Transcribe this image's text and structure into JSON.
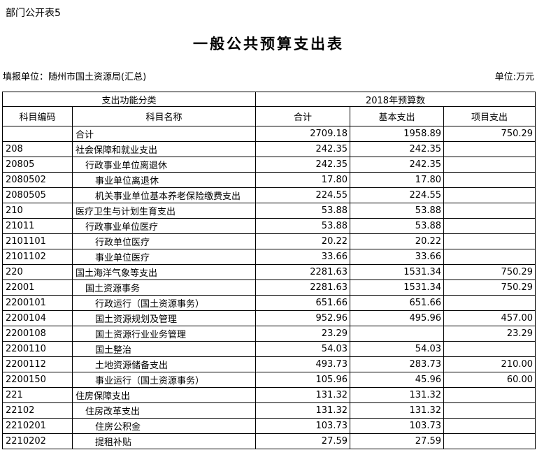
{
  "page": {
    "doc_label": "部门公开表5",
    "title": "一般公共预算支出表",
    "filler_unit": "填报单位：随州市国土资源局(汇总)",
    "unit_label": "单位:万元"
  },
  "table": {
    "header_groups": {
      "left": "支出功能分类",
      "right": "2018年预算数"
    },
    "columns": [
      "科目编码",
      "科目名称",
      "合计",
      "基本支出",
      "项目支出"
    ],
    "rows": [
      {
        "code": "",
        "name": "合计",
        "indent": 0,
        "total": "2709.18",
        "basic": "1958.89",
        "project": "750.29"
      },
      {
        "code": "208",
        "name": "社会保障和就业支出",
        "indent": 0,
        "total": "242.35",
        "basic": "242.35",
        "project": ""
      },
      {
        "code": "20805",
        "name": "行政事业单位离退休",
        "indent": 1,
        "total": "242.35",
        "basic": "242.35",
        "project": ""
      },
      {
        "code": "2080502",
        "name": "事业单位离退休",
        "indent": 2,
        "total": "17.80",
        "basic": "17.80",
        "project": ""
      },
      {
        "code": "2080505",
        "name": "机关事业单位基本养老保险缴费支出",
        "indent": 2,
        "total": "224.55",
        "basic": "224.55",
        "project": ""
      },
      {
        "code": "210",
        "name": "医疗卫生与计划生育支出",
        "indent": 0,
        "total": "53.88",
        "basic": "53.88",
        "project": ""
      },
      {
        "code": "21011",
        "name": "行政事业单位医疗",
        "indent": 1,
        "total": "53.88",
        "basic": "53.88",
        "project": ""
      },
      {
        "code": "2101101",
        "name": "行政单位医疗",
        "indent": 2,
        "total": "20.22",
        "basic": "20.22",
        "project": ""
      },
      {
        "code": "2101102",
        "name": "事业单位医疗",
        "indent": 2,
        "total": "33.66",
        "basic": "33.66",
        "project": ""
      },
      {
        "code": "220",
        "name": "国土海洋气象等支出",
        "indent": 0,
        "total": "2281.63",
        "basic": "1531.34",
        "project": "750.29"
      },
      {
        "code": "22001",
        "name": "国土资源事务",
        "indent": 1,
        "total": "2281.63",
        "basic": "1531.34",
        "project": "750.29"
      },
      {
        "code": "2200101",
        "name": "行政运行（国土资源事务）",
        "indent": 2,
        "total": "651.66",
        "basic": "651.66",
        "project": ""
      },
      {
        "code": "2200104",
        "name": "国土资源规划及管理",
        "indent": 2,
        "total": "952.96",
        "basic": "495.96",
        "project": "457.00"
      },
      {
        "code": "2200108",
        "name": "国土资源行业业务管理",
        "indent": 2,
        "total": "23.29",
        "basic": "",
        "project": "23.29"
      },
      {
        "code": "2200110",
        "name": "国土整治",
        "indent": 2,
        "total": "54.03",
        "basic": "54.03",
        "project": ""
      },
      {
        "code": "2200112",
        "name": "土地资源储备支出",
        "indent": 2,
        "total": "493.73",
        "basic": "283.73",
        "project": "210.00"
      },
      {
        "code": "2200150",
        "name": "事业运行（国土资源事务）",
        "indent": 2,
        "total": "105.96",
        "basic": "45.96",
        "project": "60.00"
      },
      {
        "code": "221",
        "name": "住房保障支出",
        "indent": 0,
        "total": "131.32",
        "basic": "131.32",
        "project": ""
      },
      {
        "code": "22102",
        "name": "住房改革支出",
        "indent": 1,
        "total": "131.32",
        "basic": "131.32",
        "project": ""
      },
      {
        "code": "2210201",
        "name": "住房公积金",
        "indent": 2,
        "total": "103.73",
        "basic": "103.73",
        "project": ""
      },
      {
        "code": "2210202",
        "name": "提租补贴",
        "indent": 2,
        "total": "27.59",
        "basic": "27.59",
        "project": ""
      }
    ]
  }
}
